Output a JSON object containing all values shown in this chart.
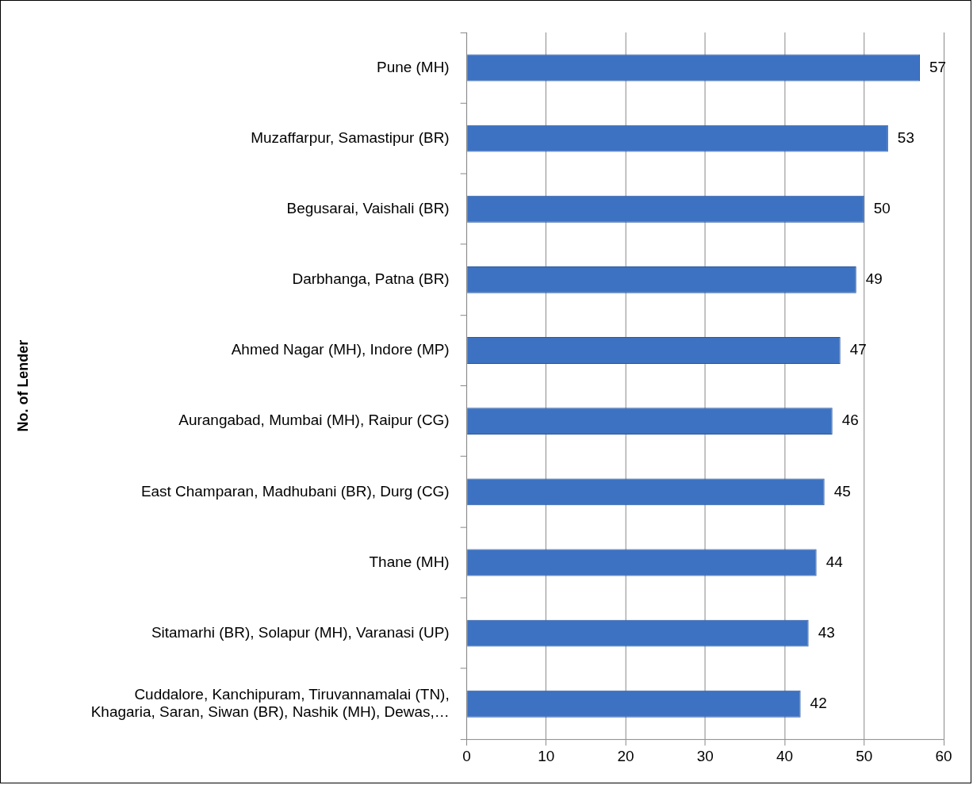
{
  "chart_data": {
    "type": "bar",
    "orientation": "horizontal",
    "ylabel": "No. of Lender",
    "categories": [
      "Pune (MH)",
      "Muzaffarpur, Samastipur (BR)",
      "Begusarai, Vaishali (BR)",
      "Darbhanga, Patna (BR)",
      "Ahmed Nagar (MH), Indore (MP)",
      "Aurangabad, Mumbai (MH), Raipur (CG)",
      "East Champaran, Madhubani (BR), Durg (CG)",
      "Thane (MH)",
      "Sitamarhi (BR), Solapur (MH), Varanasi (UP)",
      "Cuddalore, Kanchipuram, Tiruvannamalai (TN),\nKhagaria, Saran, Siwan (BR), Nashik (MH), Dewas,…"
    ],
    "values": [
      57,
      53,
      50,
      49,
      47,
      46,
      45,
      44,
      43,
      42
    ],
    "color": "#3d72c2",
    "xlim": [
      0,
      60
    ],
    "xticks": [
      0,
      10,
      20,
      30,
      40,
      50,
      60
    ],
    "grid": "x",
    "data_labels": true,
    "legend": false
  }
}
